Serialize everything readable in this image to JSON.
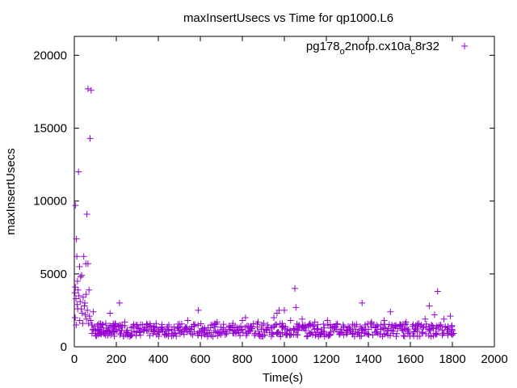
{
  "chart_data": {
    "type": "scatter",
    "title": "maxInsertUsecs vs Time for qp1000.L6",
    "xlabel": "Time(s)",
    "ylabel": "maxInsertUsecs",
    "xlim": [
      0,
      2000
    ],
    "ylim": [
      0,
      21300
    ],
    "xticks": [
      "0",
      "200",
      "400",
      "600",
      "800",
      "1000",
      "1200",
      "1400",
      "1600",
      "1800",
      "2000"
    ],
    "yticks": [
      "0",
      "5000",
      "10000",
      "15000",
      "20000"
    ],
    "grid": false,
    "legend_position": "top-right",
    "series": [
      {
        "name": "pg178_o2nofp.cx10a_c8r32",
        "legend_parts": [
          "pg178",
          "o",
          "2nofp.cx10a",
          "c",
          "8r32"
        ],
        "color": "#9400d3",
        "points": [
          [
            5,
            9700
          ],
          [
            10,
            7400
          ],
          [
            20,
            12000
          ],
          [
            60,
            9100
          ],
          [
            65,
            17700
          ],
          [
            80,
            17600
          ],
          [
            75,
            14300
          ],
          [
            12,
            6200
          ],
          [
            25,
            5500
          ],
          [
            45,
            6200
          ],
          [
            55,
            5700
          ],
          [
            65,
            5700
          ],
          [
            30,
            4800
          ],
          [
            35,
            4900
          ],
          [
            15,
            4500
          ],
          [
            5,
            4100
          ],
          [
            3,
            3700
          ],
          [
            8,
            3300
          ],
          [
            14,
            2900
          ],
          [
            18,
            3900
          ],
          [
            22,
            3500
          ],
          [
            28,
            3100
          ],
          [
            33,
            2600
          ],
          [
            38,
            2300
          ],
          [
            42,
            3400
          ],
          [
            48,
            2800
          ],
          [
            52,
            2200
          ],
          [
            58,
            1900
          ],
          [
            62,
            2500
          ],
          [
            68,
            1600
          ],
          [
            72,
            2100
          ],
          [
            78,
            1800
          ],
          [
            85,
            1500
          ],
          [
            90,
            2400
          ],
          [
            4,
            2000
          ],
          [
            9,
            1500
          ],
          [
            16,
            2600
          ],
          [
            26,
            1800
          ],
          [
            40,
            1600
          ],
          [
            50,
            3000
          ],
          [
            56,
            3600
          ],
          [
            70,
            3900
          ],
          [
            100,
            1200
          ],
          [
            110,
            1500
          ],
          [
            120,
            900
          ],
          [
            130,
            1300
          ],
          [
            140,
            1100
          ],
          [
            150,
            1600
          ],
          [
            160,
            800
          ],
          [
            170,
            2300
          ],
          [
            180,
            1000
          ],
          [
            190,
            1400
          ],
          [
            200,
            1200
          ],
          [
            215,
            3000
          ],
          [
            225,
            1100
          ],
          [
            240,
            1700
          ],
          [
            255,
            900
          ],
          [
            270,
            1300
          ],
          [
            285,
            1000
          ],
          [
            300,
            1500
          ],
          [
            315,
            800
          ],
          [
            330,
            1200
          ],
          [
            345,
            1100
          ],
          [
            360,
            1400
          ],
          [
            375,
            900
          ],
          [
            390,
            1300
          ],
          [
            405,
            1000
          ],
          [
            420,
            1200
          ],
          [
            435,
            800
          ],
          [
            450,
            1500
          ],
          [
            465,
            1100
          ],
          [
            480,
            900
          ],
          [
            495,
            1300
          ],
          [
            510,
            1000
          ],
          [
            525,
            1200
          ],
          [
            540,
            1800
          ],
          [
            555,
            900
          ],
          [
            570,
            1400
          ],
          [
            590,
            2500
          ],
          [
            605,
            1100
          ],
          [
            620,
            1300
          ],
          [
            635,
            900
          ],
          [
            650,
            1500
          ],
          [
            665,
            1100
          ],
          [
            680,
            1700
          ],
          [
            695,
            1000
          ],
          [
            710,
            1300
          ],
          [
            725,
            900
          ],
          [
            740,
            1200
          ],
          [
            755,
            1600
          ],
          [
            770,
            1000
          ],
          [
            785,
            1300
          ],
          [
            800,
            1800
          ],
          [
            815,
            2000
          ],
          [
            830,
            1100
          ],
          [
            845,
            1400
          ],
          [
            860,
            900
          ],
          [
            875,
            1700
          ],
          [
            890,
            1200
          ],
          [
            905,
            1000
          ],
          [
            920,
            1500
          ],
          [
            935,
            1300
          ],
          [
            950,
            2000
          ],
          [
            965,
            2300
          ],
          [
            975,
            2500
          ],
          [
            990,
            1600
          ],
          [
            1000,
            2500
          ],
          [
            1015,
            1200
          ],
          [
            1030,
            1800
          ],
          [
            1050,
            4000
          ],
          [
            1055,
            2700
          ],
          [
            1070,
            1500
          ],
          [
            1085,
            1900
          ],
          [
            1100,
            1100
          ],
          [
            1115,
            1400
          ],
          [
            1130,
            1000
          ],
          [
            1145,
            1700
          ],
          [
            1160,
            1200
          ],
          [
            1175,
            900
          ],
          [
            1190,
            1300
          ],
          [
            1205,
            1800
          ],
          [
            1220,
            1000
          ],
          [
            1235,
            1400
          ],
          [
            1250,
            1200
          ],
          [
            1265,
            900
          ],
          [
            1280,
            1500
          ],
          [
            1295,
            1100
          ],
          [
            1310,
            1300
          ],
          [
            1325,
            900
          ],
          [
            1340,
            1200
          ],
          [
            1355,
            1000
          ],
          [
            1370,
            3000
          ],
          [
            1385,
            1500
          ],
          [
            1400,
            1200
          ],
          [
            1415,
            1700
          ],
          [
            1430,
            1000
          ],
          [
            1445,
            1400
          ],
          [
            1460,
            1200
          ],
          [
            1475,
            1800
          ],
          [
            1490,
            1100
          ],
          [
            1505,
            2400
          ],
          [
            1520,
            1300
          ],
          [
            1535,
            900
          ],
          [
            1550,
            1500
          ],
          [
            1565,
            1100
          ],
          [
            1580,
            1700
          ],
          [
            1595,
            1000
          ],
          [
            1610,
            1400
          ],
          [
            1625,
            1200
          ],
          [
            1640,
            1600
          ],
          [
            1655,
            1000
          ],
          [
            1670,
            1900
          ],
          [
            1690,
            2800
          ],
          [
            1700,
            1500
          ],
          [
            1715,
            2200
          ],
          [
            1730,
            3800
          ],
          [
            1745,
            1400
          ],
          [
            1760,
            1900
          ],
          [
            1775,
            1200
          ],
          [
            1790,
            2100
          ],
          [
            1800,
            1100
          ]
        ]
      }
    ]
  }
}
